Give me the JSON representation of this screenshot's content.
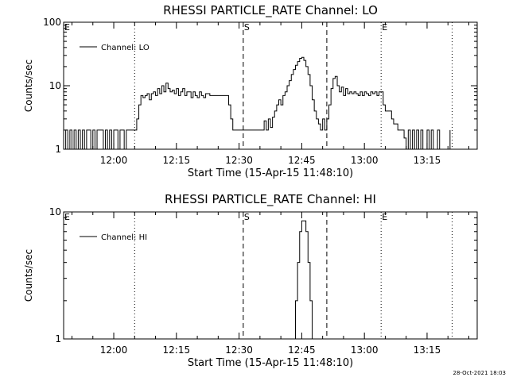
{
  "footer_timestamp": "28-Oct-2021 18:03",
  "chart_data": [
    {
      "type": "line",
      "title": "RHESSI PARTICLE_RATE Channel: LO",
      "xlabel": "Start Time (15-Apr-15 11:48:10)",
      "ylabel": "Counts/sec",
      "yscale": "log",
      "ylim": [
        1,
        100
      ],
      "ytick_labels": [
        "1",
        "10",
        "100"
      ],
      "ytick_values": [
        1,
        10,
        100
      ],
      "xlim": [
        "11:48",
        "13:27"
      ],
      "xtick_labels": [
        "12:00",
        "12:15",
        "12:30",
        "12:45",
        "13:00",
        "13:15"
      ],
      "xtick_values": [
        "12:00",
        "12:15",
        "12:30",
        "12:45",
        "13:00",
        "13:15"
      ],
      "legend": {
        "placement": "top-left",
        "label": "Channel: LO"
      },
      "markers": [
        {
          "label": "E",
          "x": "11:48",
          "style": "dotted"
        },
        {
          "label": "",
          "x": "12:05",
          "style": "dotted"
        },
        {
          "label": "S",
          "x": "12:31",
          "style": "dashed"
        },
        {
          "label": "",
          "x": "12:51",
          "style": "dashed"
        },
        {
          "label": "E",
          "x": "13:04",
          "style": "dotted"
        },
        {
          "label": "",
          "x": "13:21",
          "style": "dotted"
        }
      ],
      "series": [
        {
          "name": "Channel: LO",
          "points": [
            [
              "11:48",
              1
            ],
            [
              "11:48:30",
              2
            ],
            [
              "11:49",
              1
            ],
            [
              "11:49:30",
              2
            ],
            [
              "11:50",
              1
            ],
            [
              "11:50:30",
              2
            ],
            [
              "11:51",
              1
            ],
            [
              "11:51:30",
              2
            ],
            [
              "11:52",
              1
            ],
            [
              "11:52:30",
              2
            ],
            [
              "11:53",
              1
            ],
            [
              "11:53:30",
              2
            ],
            [
              "11:54",
              2
            ],
            [
              "11:54:30",
              1
            ],
            [
              "11:55",
              2
            ],
            [
              "11:55:30",
              1
            ],
            [
              "11:56",
              2
            ],
            [
              "11:57",
              2
            ],
            [
              "11:57:30",
              1
            ],
            [
              "11:58",
              2
            ],
            [
              "11:58:30",
              1
            ],
            [
              "11:59",
              2
            ],
            [
              "11:59:30",
              1
            ],
            [
              "12:00",
              2
            ],
            [
              "12:00:30",
              2
            ],
            [
              "12:01",
              1
            ],
            [
              "12:01:30",
              2
            ],
            [
              "12:02",
              2
            ],
            [
              "12:02:30",
              1
            ],
            [
              "12:03",
              2
            ],
            [
              "12:03:30",
              2
            ],
            [
              "12:04",
              2
            ],
            [
              "12:04:30",
              2
            ],
            [
              "12:05",
              2
            ],
            [
              "12:05:30",
              3
            ],
            [
              "12:06",
              5
            ],
            [
              "12:06:30",
              7
            ],
            [
              "12:07",
              6.5
            ],
            [
              "12:07:30",
              7
            ],
            [
              "12:08",
              7.5
            ],
            [
              "12:08:30",
              6
            ],
            [
              "12:09",
              7.5
            ],
            [
              "12:09:30",
              8
            ],
            [
              "12:10",
              7
            ],
            [
              "12:10:30",
              9
            ],
            [
              "12:11",
              7.5
            ],
            [
              "12:11:30",
              10
            ],
            [
              "12:12",
              8
            ],
            [
              "12:12:30",
              11
            ],
            [
              "12:13",
              9
            ],
            [
              "12:13:30",
              8
            ],
            [
              "12:14",
              8.5
            ],
            [
              "12:14:30",
              7.5
            ],
            [
              "12:15",
              9
            ],
            [
              "12:15:30",
              7
            ],
            [
              "12:16",
              8
            ],
            [
              "12:16:30",
              9
            ],
            [
              "12:17",
              7
            ],
            [
              "12:17:30",
              8
            ],
            [
              "12:18",
              8
            ],
            [
              "12:18:30",
              6.5
            ],
            [
              "12:19",
              8
            ],
            [
              "12:19:30",
              7
            ],
            [
              "12:20",
              6.5
            ],
            [
              "12:20:30",
              8
            ],
            [
              "12:21",
              7
            ],
            [
              "12:21:30",
              6.5
            ],
            [
              "12:22",
              7.5
            ],
            [
              "12:22:30",
              7.5
            ],
            [
              "12:23",
              7
            ],
            [
              "12:23:30",
              7
            ],
            [
              "12:24",
              7
            ],
            [
              "12:24:30",
              7
            ],
            [
              "12:25",
              7
            ],
            [
              "12:25:30",
              7
            ],
            [
              "12:26",
              7
            ],
            [
              "12:26:30",
              7
            ],
            [
              "12:27",
              7
            ],
            [
              "12:27:30",
              5
            ],
            [
              "12:28",
              3
            ],
            [
              "12:28:30",
              2
            ],
            [
              "12:29",
              2
            ],
            [
              "12:30",
              2
            ],
            [
              "12:31",
              2
            ],
            [
              "12:32",
              2
            ],
            [
              "12:33",
              2
            ],
            [
              "12:34",
              2
            ],
            [
              "12:35",
              2
            ],
            [
              "12:35:30",
              2
            ],
            [
              "12:36",
              2.8
            ],
            [
              "12:36:30",
              2
            ],
            [
              "12:37",
              3
            ],
            [
              "12:37:30",
              2.2
            ],
            [
              "12:38",
              3.2
            ],
            [
              "12:38:30",
              4
            ],
            [
              "12:39",
              5
            ],
            [
              "12:39:30",
              6
            ],
            [
              "12:40",
              5
            ],
            [
              "12:40:30",
              7
            ],
            [
              "12:41",
              8
            ],
            [
              "12:41:30",
              10
            ],
            [
              "12:42",
              12
            ],
            [
              "12:42:30",
              15
            ],
            [
              "12:43",
              18
            ],
            [
              "12:43:30",
              21
            ],
            [
              "12:44",
              24
            ],
            [
              "12:44:30",
              27
            ],
            [
              "12:45",
              28
            ],
            [
              "12:45:30",
              25
            ],
            [
              "12:46",
              20
            ],
            [
              "12:46:30",
              15
            ],
            [
              "12:47",
              10
            ],
            [
              "12:47:30",
              6
            ],
            [
              "12:48",
              4
            ],
            [
              "12:48:30",
              3
            ],
            [
              "12:49",
              2.5
            ],
            [
              "12:49:30",
              2
            ],
            [
              "12:50",
              3
            ],
            [
              "12:50:30",
              2
            ],
            [
              "12:51",
              3
            ],
            [
              "12:51:30",
              5
            ],
            [
              "12:52",
              9
            ],
            [
              "12:52:30",
              13
            ],
            [
              "12:53",
              14
            ],
            [
              "12:53:30",
              10
            ],
            [
              "12:54",
              8
            ],
            [
              "12:54:30",
              9.5
            ],
            [
              "12:55",
              7
            ],
            [
              "12:55:30",
              9
            ],
            [
              "12:56",
              7.5
            ],
            [
              "12:56:30",
              8
            ],
            [
              "12:57",
              7.5
            ],
            [
              "12:57:30",
              8
            ],
            [
              "12:58",
              7.5
            ],
            [
              "12:58:30",
              7
            ],
            [
              "12:59",
              8
            ],
            [
              "12:59:30",
              7
            ],
            [
              "13:00",
              8
            ],
            [
              "13:00:30",
              7.5
            ],
            [
              "13:01",
              7
            ],
            [
              "13:01:30",
              8
            ],
            [
              "13:02",
              7.5
            ],
            [
              "13:02:30",
              8
            ],
            [
              "13:03",
              7
            ],
            [
              "13:03:30",
              8
            ],
            [
              "13:04",
              8
            ],
            [
              "13:04:30",
              5
            ],
            [
              "13:05",
              4
            ],
            [
              "13:05:30",
              4
            ],
            [
              "13:06",
              4
            ],
            [
              "13:06:30",
              3
            ],
            [
              "13:07",
              2.5
            ],
            [
              "13:07:30",
              2.5
            ],
            [
              "13:08",
              2
            ],
            [
              "13:08:30",
              2
            ],
            [
              "13:09",
              2
            ],
            [
              "13:09:30",
              1.5
            ],
            [
              "13:10",
              1
            ],
            [
              "13:10:30",
              2
            ],
            [
              "13:11",
              1
            ],
            [
              "13:11:30",
              2
            ],
            [
              "13:12",
              1
            ],
            [
              "13:12:30",
              2
            ],
            [
              "13:13",
              1
            ],
            [
              "13:13:30",
              2
            ],
            [
              "13:14",
              1
            ],
            [
              "13:15",
              2
            ],
            [
              "13:15:30",
              1
            ],
            [
              "13:16",
              2
            ],
            [
              "13:16:30",
              1
            ],
            [
              "13:17",
              1
            ],
            [
              "13:17:30",
              2
            ],
            [
              "13:18",
              1
            ],
            [
              "13:20",
              1
            ],
            [
              "13:20:30",
              2
            ]
          ]
        }
      ]
    },
    {
      "type": "line",
      "title": "RHESSI PARTICLE_RATE Channel: HI",
      "xlabel": "Start Time (15-Apr-15 11:48:10)",
      "ylabel": "Counts/sec",
      "yscale": "log",
      "ylim": [
        1,
        10
      ],
      "ytick_labels": [
        "1",
        "10"
      ],
      "ytick_values": [
        1,
        10
      ],
      "xlim": [
        "11:48",
        "13:27"
      ],
      "xtick_labels": [
        "12:00",
        "12:15",
        "12:30",
        "12:45",
        "13:00",
        "13:15"
      ],
      "xtick_values": [
        "12:00",
        "12:15",
        "12:30",
        "12:45",
        "13:00",
        "13:15"
      ],
      "legend": {
        "placement": "top-left",
        "label": "Channel: HI"
      },
      "markers": [
        {
          "label": "E",
          "x": "11:48",
          "style": "dotted"
        },
        {
          "label": "",
          "x": "12:05",
          "style": "dotted"
        },
        {
          "label": "S",
          "x": "12:31",
          "style": "dashed"
        },
        {
          "label": "",
          "x": "12:51",
          "style": "dashed"
        },
        {
          "label": "E",
          "x": "13:04",
          "style": "dotted"
        },
        {
          "label": "",
          "x": "13:21",
          "style": "dotted"
        }
      ],
      "series": [
        {
          "name": "Channel: HI",
          "points": [
            [
              "12:43",
              1
            ],
            [
              "12:43:30",
              2
            ],
            [
              "12:44",
              4
            ],
            [
              "12:44:30",
              7
            ],
            [
              "12:45",
              8.5
            ],
            [
              "12:45:30",
              8.5
            ],
            [
              "12:46",
              7
            ],
            [
              "12:46:30",
              4
            ],
            [
              "12:47",
              2
            ],
            [
              "12:47:30",
              1
            ]
          ]
        }
      ]
    }
  ]
}
